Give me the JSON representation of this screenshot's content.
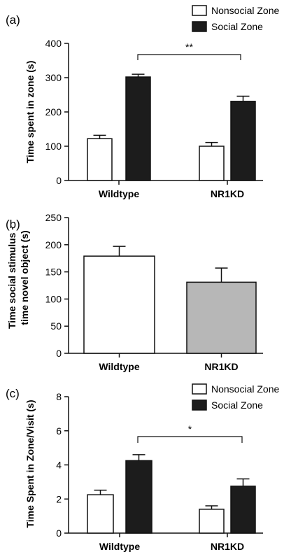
{
  "figure": {
    "colors": {
      "nonsocial": "#ffffff",
      "social": "#1c1c1c",
      "nr1kd_b": "#b7b7b7",
      "axis": "#111111"
    }
  },
  "chart_data": [
    {
      "panel_label": "(a)",
      "type": "bar",
      "ylabel": "Time spent in zone (s)",
      "ylim": [
        0,
        400
      ],
      "yticks": [
        "0",
        "100",
        "200",
        "300",
        "400"
      ],
      "categories": [
        "Wildtype",
        "NR1KD"
      ],
      "series": [
        {
          "name": "Nonsocial Zone",
          "values": [
            122,
            100
          ],
          "errors": [
            10,
            11
          ]
        },
        {
          "name": "Social Zone",
          "values": [
            302,
            231
          ],
          "errors": [
            8,
            15
          ]
        }
      ],
      "legend": "top-right",
      "significance": "**"
    },
    {
      "panel_label": "(b)",
      "type": "bar",
      "ylabel_lines": [
        "Time social stimulus -",
        "time novel object (s)"
      ],
      "ylim": [
        0,
        250
      ],
      "yticks": [
        "0",
        "50",
        "100",
        "150",
        "200",
        "250"
      ],
      "categories": [
        "Wildtype",
        "NR1KD"
      ],
      "values": [
        179,
        131
      ],
      "errors": [
        18,
        26
      ]
    },
    {
      "panel_label": "(c)",
      "type": "bar",
      "ylabel": "Time  Spent in Zone/Visit  (s)",
      "ylim": [
        0,
        8
      ],
      "yticks": [
        "0",
        "2",
        "4",
        "6",
        "8"
      ],
      "categories": [
        "Wildtype",
        "NR1KD"
      ],
      "series": [
        {
          "name": "Nonsocial Zone",
          "values": [
            2.25,
            1.4
          ],
          "errors": [
            0.27,
            0.2
          ]
        },
        {
          "name": "Social Zone",
          "values": [
            4.25,
            2.75
          ],
          "errors": [
            0.35,
            0.43
          ]
        }
      ],
      "legend": "top-right",
      "significance": "*"
    }
  ]
}
